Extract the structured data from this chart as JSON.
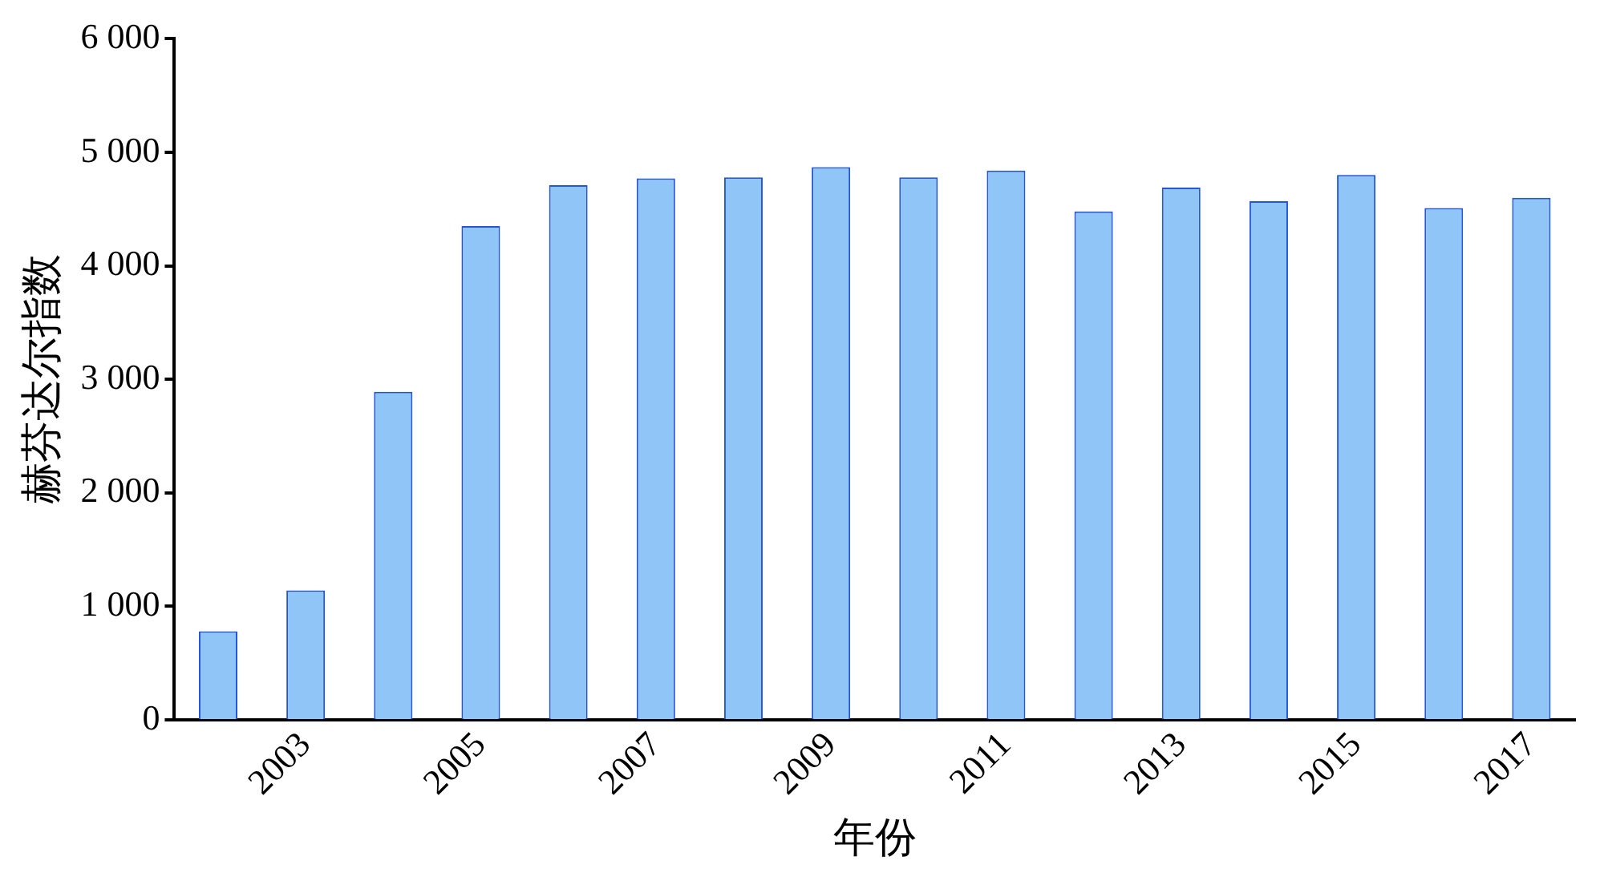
{
  "chart_data": {
    "type": "bar",
    "xlabel": "年份",
    "ylabel": "赫芬达尔指数",
    "categories": [
      null,
      "2003",
      null,
      "2005",
      null,
      "2007",
      null,
      "2009",
      null,
      "2011",
      null,
      "2013",
      null,
      "2015",
      null,
      "2017"
    ],
    "values": [
      780,
      1140,
      2890,
      4350,
      4710,
      4770,
      4780,
      4870,
      4780,
      4840,
      4480,
      4690,
      4570,
      4800,
      4510,
      4600
    ],
    "color": "#8fc5f7",
    "ylim": [
      0,
      6000
    ],
    "yticks": [
      0,
      {
        "value": 1000,
        "label": "1 000"
      },
      {
        "value": 2000,
        "label": "2 000"
      },
      {
        "value": 3000,
        "label": "3 000"
      },
      {
        "value": 4000,
        "label": "4 000"
      },
      {
        "value": 5000,
        "label": "5 000"
      },
      {
        "value": 6000,
        "label": "6 000"
      }
    ],
    "grid": false,
    "legend": false
  }
}
